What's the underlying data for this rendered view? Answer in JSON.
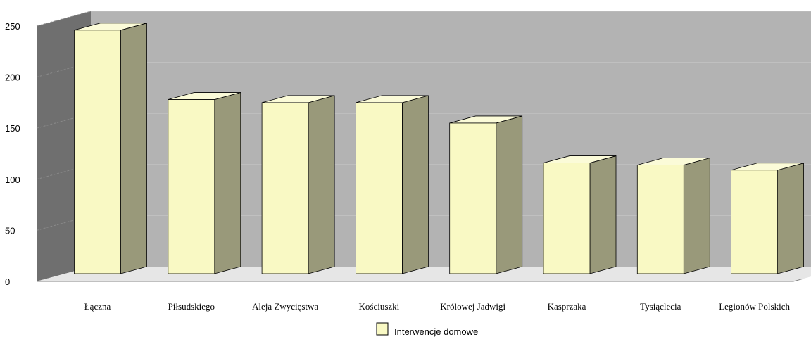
{
  "chart_data": {
    "type": "bar",
    "categories": [
      "Łączna",
      "Piłsudskiego",
      "Aleja Zwycięstwa",
      "Kościuszki",
      "Królowej Jadwigi",
      "Kasprzaka",
      "Tysiąclecia",
      "Legionów Polskich"
    ],
    "series": [
      {
        "name": "Interwencje domowe",
        "values": [
          246,
          178,
          175,
          175,
          155,
          116,
          114,
          109
        ]
      }
    ],
    "ylim": [
      0,
      250
    ],
    "yticks": [
      0,
      50,
      100,
      150,
      200,
      250
    ],
    "grid": true,
    "legend": "bottom-center",
    "style": "3d-column",
    "colors": {
      "bar_front": "#f9f9c4",
      "bar_side": "#99997a",
      "bar_top": "#fbfbd8",
      "back_wall": "#b3b3b3",
      "side_wall": "#6f6f6f",
      "floor": "#e6e6e6"
    }
  }
}
